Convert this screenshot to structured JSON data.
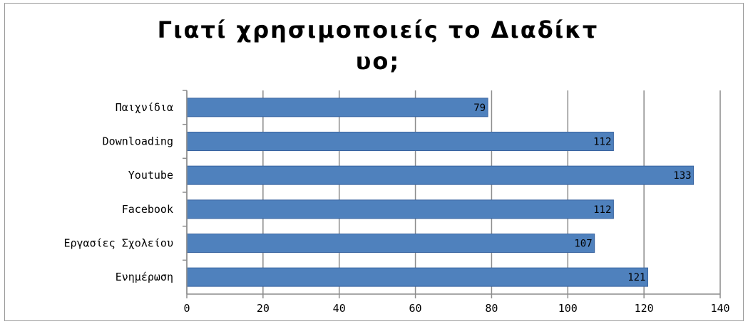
{
  "chart_data": {
    "type": "bar",
    "orientation": "horizontal",
    "title": "Γιατί χρησιμοποιείς το Διαδίκτυο;",
    "title_line1": "Γιατί χρησιμοποιείς το Διαδίκτ",
    "title_line2": "υο;",
    "categories": [
      "Παιχνίδια",
      "Downloading",
      "Youtube",
      "Facebook",
      "Εργασίες Σχολείου",
      "Ενημέρωση"
    ],
    "values": [
      79,
      112,
      133,
      112,
      107,
      121
    ],
    "data_labels": [
      "79",
      "112",
      "133",
      "112",
      "107",
      "121"
    ],
    "xlim": [
      0,
      140
    ],
    "xticks": [
      0,
      20,
      40,
      60,
      80,
      100,
      120,
      140
    ],
    "xtick_labels": [
      "0",
      "20",
      "40",
      "60",
      "80",
      "100",
      "120",
      "140"
    ],
    "xlabel": "",
    "ylabel": "",
    "grid": true,
    "legend": "none",
    "bar_color": "#4f81bd",
    "bar_edge_color": "#3a64a0"
  }
}
